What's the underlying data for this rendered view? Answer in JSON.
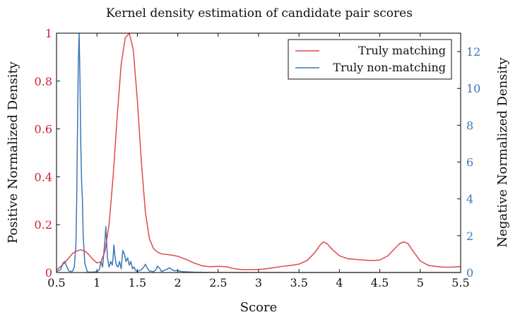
{
  "chart_data": {
    "type": "line",
    "title": "Kernel density estimation of candidate pair scores",
    "xlabel": "Score",
    "ylabel_left": "Positive Normalized Density",
    "ylabel_right": "Negative Normalized Density",
    "xlim": [
      0.5,
      5.5
    ],
    "ylim_left": [
      0,
      1
    ],
    "ylim_right": [
      0,
      13
    ],
    "x_ticks": [
      "0.5",
      "1",
      "1.5",
      "2",
      "2.5",
      "3",
      "3.5",
      "4",
      "4.5",
      "5",
      "5.5"
    ],
    "y_ticks_left": [
      "0",
      "0.2",
      "0.4",
      "0.6",
      "0.8",
      "1"
    ],
    "y_ticks_right": [
      "0",
      "2",
      "4",
      "6",
      "8",
      "10",
      "12"
    ],
    "grid": false,
    "legend_position": "top-right",
    "colors": {
      "positive": "#e0484f",
      "negative": "#3b77b9",
      "positive_axis": "#d0202a",
      "negative_axis": "#3b77b9"
    },
    "series": [
      {
        "name": "Truly matching",
        "axis": "left",
        "x": [
          0.5,
          0.6,
          0.65,
          0.7,
          0.75,
          0.8,
          0.85,
          0.9,
          0.95,
          1.0,
          1.05,
          1.1,
          1.15,
          1.2,
          1.25,
          1.3,
          1.35,
          1.4,
          1.45,
          1.5,
          1.55,
          1.6,
          1.65,
          1.7,
          1.75,
          1.8,
          1.9,
          2.0,
          2.1,
          2.2,
          2.3,
          2.4,
          2.5,
          2.6,
          2.7,
          2.8,
          2.9,
          3.0,
          3.1,
          3.2,
          3.3,
          3.4,
          3.5,
          3.6,
          3.7,
          3.75,
          3.8,
          3.85,
          3.9,
          4.0,
          4.1,
          4.2,
          4.3,
          4.4,
          4.5,
          4.6,
          4.7,
          4.75,
          4.8,
          4.85,
          4.9,
          5.0,
          5.1,
          5.2,
          5.3,
          5.4,
          5.5
        ],
        "y": [
          0.01,
          0.04,
          0.06,
          0.08,
          0.09,
          0.095,
          0.09,
          0.075,
          0.055,
          0.04,
          0.045,
          0.09,
          0.2,
          0.4,
          0.65,
          0.87,
          0.98,
          1.0,
          0.93,
          0.72,
          0.46,
          0.25,
          0.14,
          0.1,
          0.085,
          0.078,
          0.074,
          0.068,
          0.055,
          0.04,
          0.028,
          0.024,
          0.026,
          0.024,
          0.016,
          0.012,
          0.012,
          0.013,
          0.016,
          0.021,
          0.026,
          0.03,
          0.035,
          0.05,
          0.085,
          0.11,
          0.128,
          0.12,
          0.1,
          0.07,
          0.058,
          0.055,
          0.052,
          0.05,
          0.052,
          0.07,
          0.105,
          0.122,
          0.128,
          0.12,
          0.095,
          0.048,
          0.03,
          0.025,
          0.022,
          0.023,
          0.025
        ]
      },
      {
        "name": "Truly non-matching",
        "axis": "right",
        "x": [
          0.5,
          0.55,
          0.58,
          0.6,
          0.62,
          0.65,
          0.68,
          0.7,
          0.72,
          0.74,
          0.75,
          0.76,
          0.77,
          0.78,
          0.79,
          0.8,
          0.81,
          0.82,
          0.83,
          0.85,
          0.88,
          0.9,
          0.95,
          1.0,
          1.03,
          1.05,
          1.07,
          1.08,
          1.1,
          1.11,
          1.12,
          1.13,
          1.15,
          1.17,
          1.19,
          1.2,
          1.21,
          1.22,
          1.24,
          1.26,
          1.28,
          1.3,
          1.32,
          1.34,
          1.36,
          1.38,
          1.4,
          1.42,
          1.44,
          1.46,
          1.48,
          1.5,
          1.52,
          1.55,
          1.58,
          1.6,
          1.62,
          1.65,
          1.7,
          1.73,
          1.75,
          1.78,
          1.8,
          1.85,
          1.9,
          1.95,
          2.0,
          2.05,
          2.1,
          2.2,
          2.3,
          2.5,
          3.0,
          3.5,
          4.0,
          4.5,
          5.0,
          5.5
        ],
        "y": [
          0.05,
          0.15,
          0.5,
          0.6,
          0.4,
          0.1,
          0.05,
          0.08,
          0.3,
          1.5,
          4.0,
          8.0,
          11.5,
          13.0,
          10.5,
          7.0,
          5.0,
          4.0,
          2.0,
          0.5,
          0.05,
          0.02,
          0.02,
          0.05,
          0.15,
          0.6,
          0.3,
          0.8,
          1.8,
          2.5,
          1.7,
          0.8,
          0.3,
          0.6,
          0.4,
          0.8,
          1.5,
          1.0,
          0.4,
          0.3,
          0.6,
          0.2,
          1.2,
          1.0,
          0.6,
          0.8,
          0.4,
          0.6,
          0.2,
          0.3,
          0.1,
          0.05,
          0.1,
          0.15,
          0.3,
          0.45,
          0.25,
          0.08,
          0.05,
          0.15,
          0.35,
          0.2,
          0.05,
          0.15,
          0.25,
          0.1,
          0.1,
          0.05,
          0.04,
          0.02,
          0.01,
          0.0,
          0.0,
          0.0,
          0.0,
          0.0,
          0.0,
          0.0
        ]
      }
    ]
  }
}
